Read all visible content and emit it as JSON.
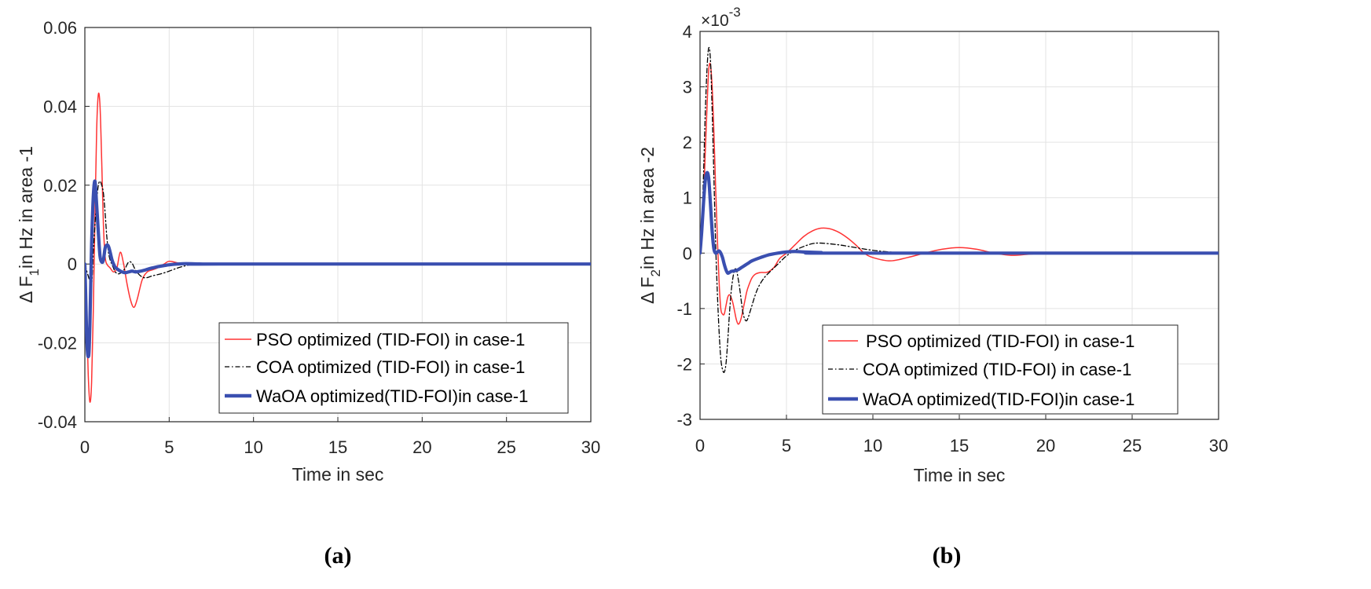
{
  "chart_data": [
    {
      "type": "line",
      "panel_label": "(a)",
      "xlabel": "Time in sec",
      "ylabel_prefix": "Δ F",
      "ylabel_sub": "1",
      "ylabel_suffix": "in Hz in area -1",
      "xlim": [
        0,
        30
      ],
      "ylim": [
        -0.04,
        0.06
      ],
      "xticks": [
        0,
        5,
        10,
        15,
        20,
        25,
        30
      ],
      "xtick_labels": [
        "0",
        "5",
        "10",
        "15",
        "20",
        "25",
        "30"
      ],
      "yticks": [
        -0.04,
        -0.02,
        0,
        0.02,
        0.04,
        0.06
      ],
      "ytick_labels": [
        "-0.04",
        "-0.02",
        "0",
        "0.02",
        "0.04",
        "0.06"
      ],
      "grid": true,
      "legend_position": "bottom-right",
      "series": [
        {
          "name": "PSO optimized (TID-FOI) in case-1",
          "color": "#ff3333",
          "style": "solid",
          "x": [
            0,
            0.1,
            0.2,
            0.3,
            0.4,
            0.5,
            0.6,
            0.7,
            0.8,
            0.9,
            1.0,
            1.1,
            1.2,
            1.3,
            1.5,
            1.7,
            1.9,
            2.1,
            2.3,
            2.5,
            2.7,
            2.9,
            3.1,
            3.4,
            3.7,
            4.0,
            4.3,
            4.7,
            5.0,
            5.5,
            6.0,
            7.0,
            8.0,
            30
          ],
          "y": [
            0,
            -0.012,
            -0.028,
            -0.035,
            -0.03,
            -0.012,
            0.012,
            0.034,
            0.043,
            0.04,
            0.026,
            0.01,
            0.002,
            0.0,
            -0.001,
            -0.002,
            -0.001,
            0.003,
            0.0,
            -0.005,
            -0.009,
            -0.011,
            -0.009,
            -0.004,
            -0.002,
            -0.0015,
            -0.001,
            0.0,
            0.0007,
            0.0003,
            0.0,
            0.0,
            0.0,
            0.0
          ]
        },
        {
          "name": "COA optimized (TID-FOI) in case-1",
          "color": "#000000",
          "style": "dashdot",
          "x": [
            0,
            0.2,
            0.4,
            0.5,
            0.6,
            0.7,
            0.8,
            0.9,
            1.0,
            1.1,
            1.2,
            1.3,
            1.4,
            1.5,
            1.6,
            1.7,
            1.8,
            2.0,
            2.2,
            2.4,
            2.6,
            2.8,
            3.0,
            3.3,
            3.6,
            4.0,
            4.5,
            5.0,
            5.5,
            6.0,
            6.5,
            7.0,
            8.0,
            30
          ],
          "y": [
            0,
            -0.003,
            -0.005,
            0.003,
            0.01,
            0.016,
            0.02,
            0.021,
            0.02,
            0.018,
            0.013,
            0.007,
            0.003,
            0.001,
            0.0,
            -0.001,
            -0.002,
            -0.0025,
            -0.002,
            -0.001,
            0.0005,
            0.0002,
            -0.0015,
            -0.003,
            -0.0035,
            -0.003,
            -0.0025,
            -0.0018,
            -0.001,
            -0.0004,
            0.0,
            0.0,
            0.0,
            0.0
          ]
        },
        {
          "name": "WaOA optimized(TID-FOI)in case-1",
          "color": "#3a4fb0",
          "style": "solid-thick",
          "x": [
            0,
            0.05,
            0.1,
            0.15,
            0.2,
            0.25,
            0.3,
            0.35,
            0.4,
            0.5,
            0.6,
            0.7,
            0.8,
            0.9,
            1.0,
            1.1,
            1.2,
            1.3,
            1.4,
            1.5,
            1.6,
            1.7,
            1.8,
            2.0,
            2.2,
            2.4,
            2.6,
            2.8,
            3.0,
            3.2,
            3.5,
            3.8,
            4.0,
            4.3,
            4.7,
            5.0,
            5.5,
            6.0,
            7.0,
            8.0,
            30
          ],
          "y": [
            0,
            -0.008,
            -0.017,
            -0.022,
            -0.0235,
            -0.022,
            -0.015,
            -0.005,
            0.005,
            0.017,
            0.021,
            0.015,
            0.008,
            0.002,
            0.0005,
            0.001,
            0.004,
            0.0048,
            0.0045,
            0.003,
            0.0012,
            0.0,
            -0.0008,
            -0.0015,
            -0.002,
            -0.0022,
            -0.002,
            -0.0018,
            -0.002,
            -0.0019,
            -0.0016,
            -0.0012,
            -0.001,
            -0.0007,
            -0.0004,
            -0.0002,
            0.0,
            0.0001,
            0.0,
            0.0,
            0.0
          ]
        }
      ]
    },
    {
      "type": "line",
      "panel_label": "(b)",
      "xlabel": "Time in sec",
      "ylabel_prefix": "Δ F",
      "ylabel_sub": "2",
      "ylabel_suffix": "in Hz in area -2",
      "exponent_label": "×10",
      "exponent_power": "-3",
      "xlim": [
        0,
        30
      ],
      "ylim": [
        -3,
        4
      ],
      "xticks": [
        0,
        5,
        10,
        15,
        20,
        25,
        30
      ],
      "xtick_labels": [
        "0",
        "5",
        "10",
        "15",
        "20",
        "25",
        "30"
      ],
      "yticks": [
        -3,
        -2,
        -1,
        0,
        1,
        2,
        3,
        4
      ],
      "ytick_labels": [
        "-3",
        "-2",
        "-1",
        "0",
        "1",
        "2",
        "3",
        "4"
      ],
      "grid": true,
      "legend_position": "bottom-right",
      "series": [
        {
          "name": "PSO optimized (TID-FOI) in case-1",
          "color": "#ff3333",
          "style": "solid",
          "x": [
            0,
            0.1,
            0.2,
            0.3,
            0.4,
            0.5,
            0.6,
            0.7,
            0.8,
            0.9,
            1.0,
            1.1,
            1.2,
            1.3,
            1.4,
            1.5,
            1.6,
            1.7,
            1.8,
            1.9,
            2.0,
            2.1,
            2.2,
            2.3,
            2.4,
            2.5,
            2.6,
            2.7,
            2.8,
            3.0,
            3.2,
            3.5,
            3.8,
            4.0,
            4.3,
            4.6,
            5.0,
            5.5,
            6.0,
            6.5,
            7.0,
            7.5,
            8.0,
            8.5,
            9.0,
            9.5,
            10.0,
            11.0,
            12.0,
            13.0,
            14.0,
            15.0,
            16.0,
            17.0,
            18.0,
            19.0,
            20.0,
            21.0,
            22.0,
            30
          ],
          "y": [
            0,
            0.3,
            0.9,
            1.8,
            2.6,
            3.3,
            3.4,
            3.0,
            2.2,
            1.2,
            0.3,
            -0.5,
            -1.0,
            -1.1,
            -1.1,
            -0.95,
            -0.8,
            -0.75,
            -0.8,
            -0.9,
            -1.05,
            -1.2,
            -1.28,
            -1.25,
            -1.15,
            -1.0,
            -0.85,
            -0.7,
            -0.6,
            -0.45,
            -0.38,
            -0.35,
            -0.35,
            -0.33,
            -0.25,
            -0.1,
            0.0,
            0.15,
            0.3,
            0.4,
            0.45,
            0.44,
            0.38,
            0.28,
            0.15,
            0.0,
            -0.08,
            -0.14,
            -0.08,
            0.0,
            0.07,
            0.1,
            0.07,
            0.0,
            -0.04,
            -0.02,
            0.0,
            0.01,
            0.0,
            0.0
          ]
        },
        {
          "name": "COA optimized (TID-FOI) in case-1",
          "color": "#000000",
          "style": "dashdot",
          "x": [
            0,
            0.1,
            0.2,
            0.3,
            0.4,
            0.5,
            0.6,
            0.7,
            0.8,
            0.9,
            1.0,
            1.1,
            1.2,
            1.3,
            1.4,
            1.5,
            1.6,
            1.7,
            1.8,
            1.9,
            2.0,
            2.1,
            2.2,
            2.3,
            2.4,
            2.5,
            2.6,
            2.7,
            2.8,
            2.9,
            3.0,
            3.2,
            3.4,
            3.7,
            4.0,
            4.5,
            5.0,
            5.5,
            6.0,
            6.5,
            7.0,
            8.0,
            9.0,
            10.0,
            11.0,
            12.0,
            14.0,
            16.0,
            30
          ],
          "y": [
            0,
            0.5,
            1.4,
            2.5,
            3.3,
            3.7,
            3.5,
            2.6,
            1.4,
            0.2,
            -0.7,
            -1.4,
            -1.9,
            -2.1,
            -2.15,
            -2.0,
            -1.6,
            -1.1,
            -0.7,
            -0.45,
            -0.3,
            -0.3,
            -0.45,
            -0.65,
            -0.9,
            -1.1,
            -1.2,
            -1.22,
            -1.15,
            -1.05,
            -0.95,
            -0.75,
            -0.6,
            -0.45,
            -0.35,
            -0.2,
            -0.05,
            0.05,
            0.12,
            0.17,
            0.18,
            0.15,
            0.1,
            0.05,
            0.02,
            0.0,
            -0.01,
            0.0,
            0.0
          ]
        },
        {
          "name": "WaOA optimized(TID-FOI)in case-1",
          "color": "#3a4fb0",
          "style": "solid-thick",
          "x": [
            0,
            0.1,
            0.2,
            0.3,
            0.4,
            0.5,
            0.6,
            0.7,
            0.8,
            0.9,
            1.0,
            1.1,
            1.2,
            1.3,
            1.4,
            1.5,
            1.6,
            1.7,
            1.8,
            2.0,
            2.2,
            2.4,
            2.6,
            2.8,
            3.0,
            3.5,
            4.0,
            4.5,
            5.0,
            5.5,
            6.0,
            7.0,
            8.0,
            30
          ],
          "y": [
            0,
            0.4,
            0.9,
            1.3,
            1.45,
            1.35,
            0.9,
            0.4,
            0.08,
            0.0,
            0.02,
            0.04,
            0.0,
            -0.08,
            -0.2,
            -0.3,
            -0.36,
            -0.35,
            -0.33,
            -0.32,
            -0.3,
            -0.26,
            -0.22,
            -0.18,
            -0.14,
            -0.08,
            -0.03,
            0.0,
            0.02,
            0.03,
            0.02,
            0.01,
            0.0,
            0.0
          ]
        }
      ]
    }
  ]
}
